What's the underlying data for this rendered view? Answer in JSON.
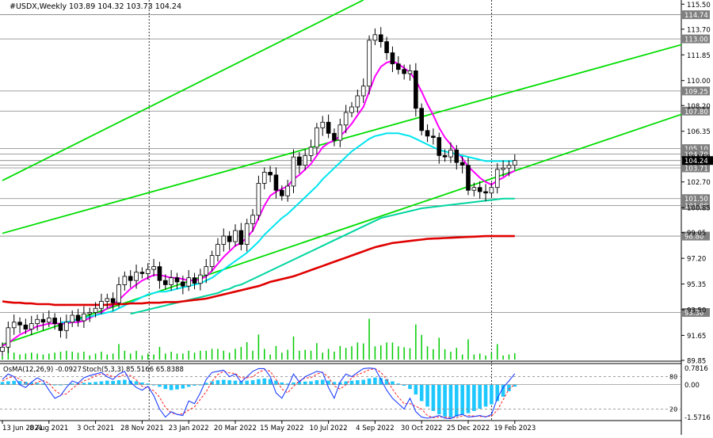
{
  "header": {
    "symbol": "#USDX,Weekly",
    "ohlc": "103.89 104.32 103.73 104.24"
  },
  "osma_label": "OsMA(12,26,9) -0.0927",
  "stoch_label": "Stoch(5,3,3) 85.5166 65.8388",
  "colors": {
    "background": "#ffffff",
    "candle_up": "#ffffff",
    "candle_down": "#000000",
    "ma_magenta": "#ff00ff",
    "ma_cyan": "#00e5ee",
    "ma_teal": "#00d5a0",
    "ma_red": "#e00000",
    "channel_green": "#00dd00",
    "volume_green": "#00cc00",
    "osma_blue": "#1ec8ff",
    "stoch_main": "#1f3fff",
    "stoch_signal": "#ff2020",
    "level_gray": "#808080"
  },
  "chart_data": {
    "type": "candlestick",
    "symbol": "#USDX",
    "timeframe": "Weekly",
    "y_ticks": [
      "115.50",
      "113.70",
      "111.85",
      "110.00",
      "108.20",
      "106.35",
      "104.50",
      "102.70",
      "100.85",
      "99.05",
      "97.20",
      "95.35",
      "93.50",
      "91.65",
      "89.85"
    ],
    "ylim": [
      89.85,
      115.8
    ],
    "levels": [
      {
        "value": 114.74,
        "label": "114.74"
      },
      {
        "value": 113.0,
        "label": "113.00"
      },
      {
        "value": 109.25,
        "label": "109.25"
      },
      {
        "value": 107.8,
        "label": "107.80"
      },
      {
        "value": 105.1,
        "label": "105.10"
      },
      {
        "value": 104.7,
        "label": "104.70"
      },
      {
        "value": 104.24,
        "label": ""
      },
      {
        "value": 103.9,
        "label": ""
      },
      {
        "value": 103.71,
        "label": "103.71"
      },
      {
        "value": 101.5,
        "label": "101.50"
      },
      {
        "value": 101.0,
        "label": "101.00"
      },
      {
        "value": 98.8,
        "label": "98.80"
      },
      {
        "value": 93.3,
        "label": "93.30"
      }
    ],
    "current_price": {
      "value": 104.24
    },
    "x_labels": [
      {
        "i": 0,
        "text": "13 Jun 2021"
      },
      {
        "i": 8,
        "text": "8 Aug 2021"
      },
      {
        "i": 16,
        "text": "3 Oct 2021"
      },
      {
        "i": 24,
        "text": "28 Nov 2021"
      },
      {
        "i": 32,
        "text": "23 Jan 2022"
      },
      {
        "i": 40,
        "text": "20 Mar 2022"
      },
      {
        "i": 48,
        "text": "15 May 2022"
      },
      {
        "i": 56,
        "text": "10 Jul 2022"
      },
      {
        "i": 64,
        "text": "4 Sep 2022"
      },
      {
        "i": 72,
        "text": "30 Oct 2022"
      },
      {
        "i": 80,
        "text": "25 Dec 2022"
      },
      {
        "i": 88,
        "text": "19 Feb 2023"
      }
    ],
    "closes": [
      90.8,
      92.2,
      92.6,
      92.4,
      92.1,
      92.5,
      92.8,
      92.6,
      92.9,
      92.5,
      92.0,
      92.6,
      93.1,
      92.7,
      93.2,
      93.3,
      93.6,
      94.1,
      94.3,
      94.0,
      95.3,
      95.9,
      95.6,
      96.2,
      96.1,
      96.4,
      96.6,
      95.6,
      95.3,
      95.8,
      95.5,
      95.2,
      95.8,
      95.4,
      96.0,
      96.6,
      97.4,
      98.2,
      98.8,
      98.4,
      99.2,
      98.2,
      99.7,
      100.3,
      102.6,
      103.4,
      103.2,
      102.1,
      101.7,
      102.4,
      104.5,
      103.9,
      104.6,
      105.2,
      106.6,
      107.0,
      106.2,
      105.7,
      106.8,
      107.7,
      108.1,
      108.9,
      109.6,
      112.9,
      113.3,
      112.8,
      112.0,
      111.2,
      110.8,
      110.5,
      110.7,
      108.0,
      106.4,
      106.0,
      105.9,
      104.6,
      104.5,
      105.0,
      104.1,
      103.9,
      102.1,
      102.3,
      102.0,
      101.9,
      102.3,
      103.6,
      103.7,
      103.9,
      104.24
    ],
    "series": [
      {
        "name": "MA fast",
        "color": "#ff00ff",
        "values": [
          90.9,
          91.1,
          91.4,
          91.7,
          91.9,
          92.1,
          92.3,
          92.4,
          92.5,
          92.5,
          92.5,
          92.5,
          92.6,
          92.6,
          92.7,
          92.9,
          93.1,
          93.3,
          93.6,
          93.8,
          94.2,
          94.6,
          95.0,
          95.3,
          95.6,
          95.8,
          96.0,
          96.0,
          95.9,
          95.8,
          95.8,
          95.7,
          95.6,
          95.6,
          95.7,
          95.9,
          96.3,
          96.8,
          97.3,
          97.7,
          98.1,
          98.3,
          98.7,
          99.2,
          100.1,
          101.0,
          101.7,
          102.0,
          102.2,
          102.4,
          102.9,
          103.2,
          103.6,
          104.0,
          104.6,
          105.2,
          105.5,
          105.7,
          106.0,
          106.4,
          106.9,
          107.5,
          108.1,
          109.2,
          110.3,
          111.0,
          111.3,
          111.4,
          111.2,
          110.9,
          110.6,
          110.0,
          109.2,
          108.3,
          107.5,
          106.6,
          105.9,
          105.4,
          104.9,
          104.4,
          103.8,
          103.4,
          103.0,
          102.7,
          102.5,
          102.8,
          103.0,
          103.3,
          103.5
        ]
      },
      {
        "name": "MA slow",
        "color": "#00e5ee",
        "values": [
          null,
          null,
          null,
          null,
          null,
          null,
          null,
          null,
          null,
          null,
          92.6,
          92.6,
          92.7,
          92.8,
          92.9,
          93.0,
          93.1,
          93.2,
          93.3,
          93.4,
          93.6,
          93.8,
          94.0,
          94.2,
          94.4,
          94.6,
          94.7,
          94.8,
          94.8,
          94.9,
          95.0,
          95.1,
          95.2,
          95.3,
          95.4,
          95.6,
          95.8,
          96.1,
          96.4,
          96.7,
          97.0,
          97.3,
          97.6,
          98.0,
          98.4,
          98.9,
          99.3,
          99.7,
          100.1,
          100.4,
          100.8,
          101.2,
          101.6,
          102.0,
          102.4,
          102.9,
          103.3,
          103.7,
          104.1,
          104.5,
          104.9,
          105.2,
          105.5,
          105.8,
          106.0,
          106.1,
          106.2,
          106.2,
          106.2,
          106.1,
          106.0,
          105.8,
          105.6,
          105.4,
          105.2,
          105.0,
          104.9,
          104.8,
          104.7,
          104.6,
          104.5,
          104.4,
          104.3,
          104.2,
          104.2,
          104.2,
          104.2,
          104.2,
          104.2
        ]
      },
      {
        "name": "MA teal",
        "color": "#00d5a0",
        "values": [
          null,
          null,
          null,
          null,
          null,
          null,
          null,
          null,
          null,
          null,
          null,
          null,
          null,
          null,
          null,
          null,
          null,
          null,
          null,
          null,
          null,
          null,
          93.2,
          93.3,
          93.4,
          93.5,
          93.6,
          93.7,
          93.8,
          93.9,
          94.0,
          94.1,
          94.2,
          94.3,
          94.4,
          94.5,
          94.6,
          94.7,
          94.9,
          95.0,
          95.2,
          95.3,
          95.5,
          95.7,
          95.9,
          96.1,
          96.3,
          96.5,
          96.7,
          96.9,
          97.1,
          97.3,
          97.5,
          97.7,
          97.9,
          98.1,
          98.3,
          98.5,
          98.7,
          98.9,
          99.1,
          99.3,
          99.5,
          99.7,
          99.9,
          100.1,
          100.2,
          100.3,
          100.4,
          100.5,
          100.6,
          100.7,
          100.8,
          100.85,
          100.9,
          100.95,
          101.0,
          101.05,
          101.1,
          101.15,
          101.2,
          101.25,
          101.3,
          101.35,
          101.4,
          101.45,
          101.5,
          101.5,
          101.5
        ]
      },
      {
        "name": "MA long",
        "color": "#e00000",
        "values": [
          94.1,
          94.05,
          94.0,
          94.0,
          93.95,
          93.95,
          93.9,
          93.9,
          93.9,
          93.85,
          93.85,
          93.85,
          93.85,
          93.85,
          93.85,
          93.85,
          93.85,
          93.85,
          93.85,
          93.9,
          93.9,
          93.9,
          93.95,
          93.95,
          93.95,
          94.0,
          94.0,
          94.0,
          94.05,
          94.05,
          94.05,
          94.1,
          94.15,
          94.2,
          94.25,
          94.3,
          94.4,
          94.5,
          94.6,
          94.7,
          94.8,
          94.9,
          95.0,
          95.1,
          95.2,
          95.35,
          95.5,
          95.6,
          95.7,
          95.8,
          95.9,
          96.05,
          96.2,
          96.35,
          96.5,
          96.65,
          96.8,
          96.95,
          97.1,
          97.25,
          97.4,
          97.55,
          97.7,
          97.85,
          98.0,
          98.1,
          98.2,
          98.3,
          98.35,
          98.4,
          98.45,
          98.5,
          98.55,
          98.6,
          98.62,
          98.64,
          98.66,
          98.68,
          98.7,
          98.72,
          98.74,
          98.76,
          98.78,
          98.8,
          98.8,
          98.8,
          98.8,
          98.8,
          98.8
        ]
      }
    ],
    "channels": [
      {
        "from": [
          0,
          102.8
        ],
        "to": [
          62,
          115.8
        ]
      },
      {
        "from": [
          0,
          99.0
        ],
        "to": [
          88,
          109.25
        ]
      },
      {
        "from": [
          0,
          91.0
        ],
        "to": [
          88,
          103.5
        ]
      }
    ],
    "osma": {
      "label": "OsMA(12,26,9) -0.0927",
      "ticks": [
        "0.7816",
        "0.00",
        "-1.5716"
      ],
      "ylim": [
        -1.6,
        0.85
      ],
      "values": [
        0.12,
        0.15,
        0.17,
        0.16,
        0.13,
        0.1,
        0.08,
        0.05,
        0.03,
        0.0,
        0.0,
        0.02,
        0.05,
        0.06,
        0.08,
        0.1,
        0.12,
        0.15,
        0.18,
        0.17,
        0.2,
        0.22,
        0.18,
        0.15,
        0.1,
        0.05,
        0.0,
        -0.1,
        -0.2,
        -0.25,
        -0.22,
        -0.18,
        -0.1,
        -0.05,
        0.0,
        0.08,
        0.15,
        0.2,
        0.22,
        0.2,
        0.18,
        0.15,
        0.18,
        0.2,
        0.25,
        0.28,
        0.25,
        0.18,
        0.1,
        0.05,
        0.1,
        0.12,
        0.14,
        0.15,
        0.2,
        0.22,
        0.18,
        0.12,
        0.1,
        0.15,
        0.18,
        0.2,
        0.22,
        0.28,
        0.32,
        0.3,
        0.25,
        0.15,
        0.05,
        -0.05,
        -0.2,
        -0.45,
        -0.75,
        -1.0,
        -1.2,
        -1.35,
        -1.45,
        -1.5,
        -1.45,
        -1.35,
        -1.3,
        -1.2,
        -1.1,
        -1.0,
        -0.9,
        -0.75,
        -0.55,
        -0.3,
        -0.09
      ]
    },
    "stoch": {
      "label": "Stoch(5,3,3) 85.5166 65.8388",
      "ticks": [
        "80",
        "20"
      ],
      "ylim": [
        0,
        100
      ],
      "main": [
        75,
        85,
        80,
        65,
        60,
        70,
        78,
        72,
        55,
        40,
        45,
        60,
        72,
        68,
        78,
        82,
        85,
        88,
        80,
        75,
        85,
        90,
        70,
        60,
        55,
        62,
        45,
        20,
        5,
        15,
        10,
        8,
        35,
        30,
        50,
        75,
        88,
        90,
        92,
        80,
        85,
        70,
        80,
        90,
        95,
        95,
        80,
        50,
        40,
        60,
        85,
        70,
        80,
        85,
        90,
        88,
        60,
        40,
        70,
        85,
        80,
        88,
        95,
        96,
        95,
        75,
        55,
        40,
        30,
        20,
        40,
        15,
        5,
        3,
        5,
        8,
        3,
        2,
        8,
        10,
        5,
        6,
        8,
        5,
        10,
        40,
        60,
        72,
        85.5166
      ],
      "signal": [
        72,
        78,
        80,
        76,
        68,
        65,
        70,
        73,
        68,
        55,
        47,
        48,
        58,
        66,
        72,
        76,
        82,
        85,
        84,
        80,
        80,
        84,
        82,
        74,
        62,
        59,
        54,
        42,
        23,
        13,
        10,
        11,
        18,
        24,
        38,
        52,
        71,
        84,
        90,
        87,
        86,
        78,
        78,
        80,
        88,
        93,
        90,
        75,
        57,
        50,
        62,
        72,
        78,
        78,
        85,
        88,
        79,
        63,
        57,
        65,
        78,
        84,
        88,
        93,
        95,
        88,
        75,
        57,
        42,
        30,
        30,
        25,
        20,
        8,
        4,
        5,
        5,
        4,
        4,
        7,
        8,
        7,
        6,
        6,
        7,
        18,
        37,
        57,
        65.8388
      ]
    }
  }
}
